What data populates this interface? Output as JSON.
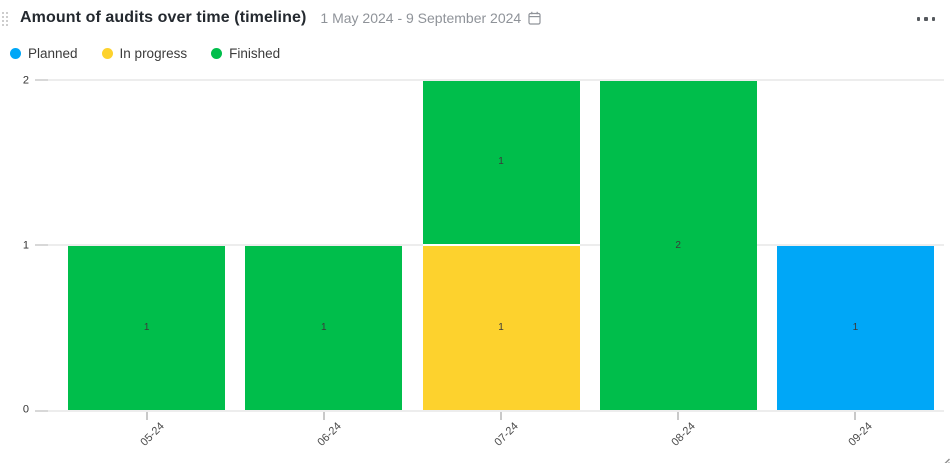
{
  "widget": {
    "title": "Amount of audits over time (timeline)",
    "date_range": "1 May 2024 - 9 September 2024"
  },
  "icons": {
    "drag_handle": "drag-handle-icon",
    "calendar": "calendar-icon",
    "menu": "ellipsis-icon",
    "resize": "resize-handle-icon"
  },
  "colors": {
    "planned": "#00A7F7",
    "in_progress": "#FDD22D",
    "finished": "#00BE4B",
    "gridline": "#EDEDED",
    "bar_label": "#3A3A3A"
  },
  "chart_data": {
    "type": "bar",
    "stacked": true,
    "title": "Amount of audits over time (timeline)",
    "categories": [
      "05-24",
      "06-24",
      "07-24",
      "08-24",
      "09-24"
    ],
    "series": [
      {
        "name": "Planned",
        "color": "#00A7F7",
        "values": [
          0,
          0,
          0,
          0,
          1
        ]
      },
      {
        "name": "In progress",
        "color": "#FDD22D",
        "values": [
          0,
          0,
          1,
          0,
          0
        ]
      },
      {
        "name": "Finished",
        "color": "#00BE4B",
        "values": [
          1,
          1,
          1,
          2,
          0
        ]
      }
    ],
    "y_ticks": [
      0,
      1,
      2
    ],
    "ylim": [
      0,
      2
    ],
    "grid": true,
    "legend_position": "top-left",
    "bar_value_labels": true
  }
}
